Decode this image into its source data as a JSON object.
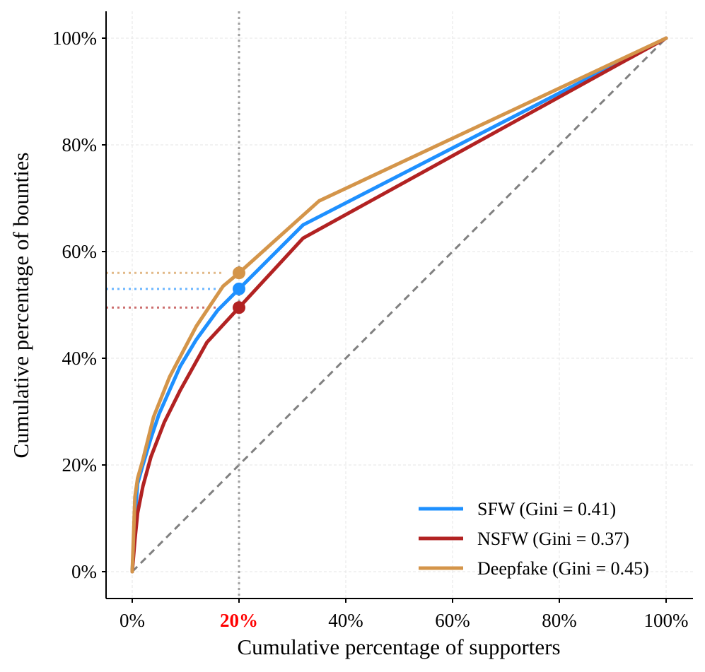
{
  "chart_data": {
    "type": "line",
    "title": "",
    "xlabel": "Cumulative percentage of supporters",
    "ylabel": "Cumulative percentage of bounties",
    "xlim": [
      -5,
      105
    ],
    "ylim": [
      -5,
      105
    ],
    "xticks": [
      0,
      20,
      40,
      60,
      80,
      100
    ],
    "yticks": [
      0,
      20,
      40,
      60,
      80,
      100
    ],
    "xtick_labels": [
      "0%",
      "20%",
      "40%",
      "60%",
      "80%",
      "100%"
    ],
    "ytick_labels": [
      "0%",
      "20%",
      "40%",
      "60%",
      "80%",
      "100%"
    ],
    "highlight_xtick": {
      "value": 20,
      "label": "20%",
      "color": "#ff0000"
    },
    "grid": true,
    "legend_position": "lower-right",
    "reference_line": {
      "name": "Equality line",
      "x": [
        0,
        100
      ],
      "y": [
        0,
        100
      ],
      "color": "#808080",
      "style": "dashed"
    },
    "vline": {
      "x": 20,
      "color": "#a0a0a0",
      "style": "dotted"
    },
    "series": [
      {
        "name": "SFW (Gini = 0.41)",
        "color": "#1e90ff",
        "x": [
          0,
          0.5,
          1,
          2,
          3.5,
          5,
          7,
          9,
          12,
          16,
          20,
          32,
          100
        ],
        "y": [
          0,
          10,
          16.5,
          20,
          25,
          29.5,
          34,
          38.5,
          43.5,
          49,
          53,
          65,
          100
        ],
        "marker": {
          "x": 20,
          "y": 53
        }
      },
      {
        "name": "NSFW (Gini = 0.37)",
        "color": "#b22222",
        "x": [
          0,
          0.5,
          1,
          2,
          3.5,
          6,
          9,
          14,
          20,
          32,
          100
        ],
        "y": [
          0,
          6,
          11,
          16,
          21.5,
          28,
          34,
          43,
          49.5,
          62.5,
          100
        ],
        "marker": {
          "x": 20,
          "y": 49.5
        }
      },
      {
        "name": "Deepfake (Gini = 0.45)",
        "color": "#d4954a",
        "x": [
          0,
          0.5,
          1,
          2,
          4,
          7,
          12,
          17,
          20,
          35,
          100
        ],
        "y": [
          0,
          14,
          17.5,
          21,
          29,
          36.5,
          46,
          53.5,
          56,
          69.5,
          100
        ],
        "marker": {
          "x": 20,
          "y": 56
        }
      }
    ]
  }
}
